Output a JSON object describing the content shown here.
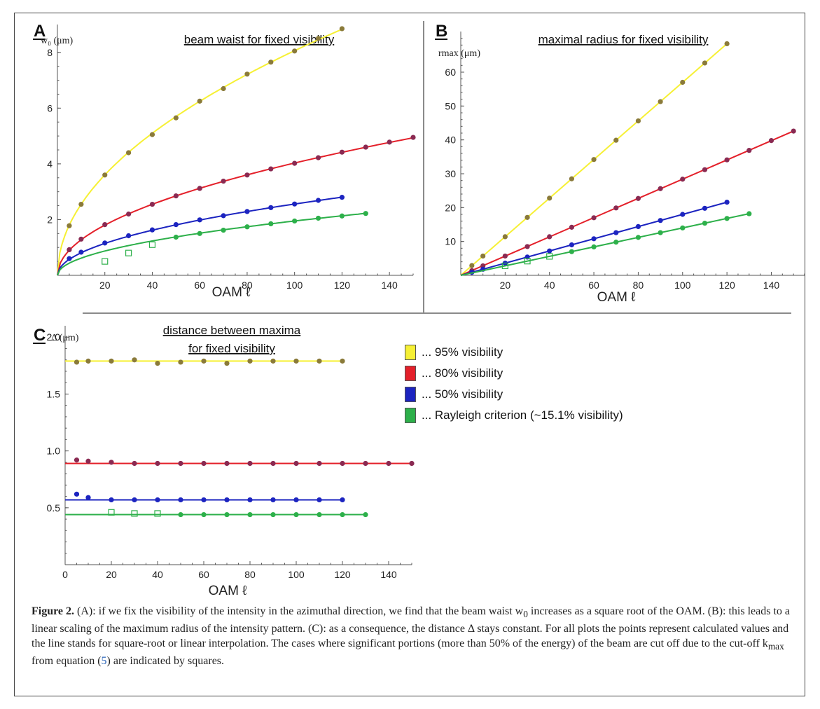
{
  "figure": {
    "caption_lead": "Figure 2.",
    "caption_part1": " (A): if we fix the visibility of the intensity in the azimuthal direction, we find that the beam waist w",
    "caption_sub0": "0",
    "caption_part2": " increases as a square root of the OAM. (B): this leads to a linear scaling of the maximum radius of the intensity pattern. (C): as a consequence, the distance Δ stays constant. For all plots the points represent calculated values and the line stands for square-root or linear interpolation. The cases where significant portions (more than 50% of the energy) of the beam are cut off due to the cut-off k",
    "caption_submax": "max",
    "caption_part3": " from equation (",
    "caption_ref": "5",
    "caption_part4": ") are indicated by squares."
  },
  "legend": [
    {
      "label": "... 95% visibility",
      "color": "#f6f034"
    },
    {
      "label": "... 80% visibility",
      "color": "#e4202a"
    },
    {
      "label": "... 50% visibility",
      "color": "#1c24c0"
    },
    {
      "label": "... Rayleigh criterion (~15.1% visibility)",
      "color": "#2db04a"
    }
  ],
  "chart_data": [
    {
      "panel": "A",
      "type": "line",
      "title": "beam waist for fixed visibility",
      "ylabel": "w₀ (μm)",
      "xlabel": "OAM ℓ",
      "xlim": [
        0,
        150
      ],
      "ylim": [
        0,
        9
      ],
      "xticks": [
        20,
        40,
        60,
        80,
        100,
        120,
        140
      ],
      "yticks": [
        2,
        4,
        6,
        8
      ],
      "fit": "sqrt",
      "series": [
        {
          "name": "95% visibility",
          "color": "#f6f034",
          "point_color": "#8a7a3a",
          "k": 0.806,
          "x": [
            5,
            10,
            20,
            30,
            40,
            50,
            60,
            70,
            80,
            90,
            100,
            110,
            120
          ],
          "y": [
            1.78,
            2.55,
            3.6,
            4.4,
            5.05,
            5.65,
            6.25,
            6.7,
            7.22,
            7.65,
            8.05,
            8.5,
            8.85
          ],
          "cut_x": [],
          "cut_y": []
        },
        {
          "name": "80% visibility",
          "color": "#e4202a",
          "point_color": "#8a2a52",
          "k": 0.403,
          "x": [
            5,
            10,
            20,
            30,
            40,
            50,
            60,
            70,
            80,
            90,
            100,
            110,
            120,
            130,
            140,
            150
          ],
          "y": [
            0.92,
            1.3,
            1.82,
            2.2,
            2.55,
            2.85,
            3.12,
            3.38,
            3.6,
            3.82,
            4.02,
            4.22,
            4.42,
            4.6,
            4.78,
            4.95
          ],
          "cut_x": [],
          "cut_y": []
        },
        {
          "name": "50% visibility",
          "color": "#1c24c0",
          "point_color": "#1c24c0",
          "k": 0.256,
          "x": [
            5,
            10,
            20,
            30,
            40,
            50,
            60,
            70,
            80,
            90,
            100,
            110,
            120
          ],
          "y": [
            0.6,
            0.83,
            1.16,
            1.42,
            1.63,
            1.82,
            1.99,
            2.14,
            2.29,
            2.43,
            2.56,
            2.69,
            2.8
          ],
          "cut_x": [],
          "cut_y": []
        },
        {
          "name": "Rayleigh criterion (~15.1% visibility)",
          "color": "#2db04a",
          "point_color": "#2db04a",
          "k": 0.195,
          "x": [
            50,
            60,
            70,
            80,
            90,
            100,
            110,
            120,
            130
          ],
          "y": [
            1.37,
            1.5,
            1.62,
            1.74,
            1.85,
            1.95,
            2.05,
            2.13,
            2.22
          ],
          "cut_x": [
            20,
            30,
            40
          ],
          "cut_y": [
            0.5,
            0.8,
            1.1
          ]
        }
      ]
    },
    {
      "panel": "B",
      "type": "line",
      "title": "maximal radius for fixed visibility",
      "ylabel": "r_max (μm)",
      "xlabel": "OAM ℓ",
      "xlim": [
        0,
        155
      ],
      "ylim": [
        0,
        72
      ],
      "xticks": [
        20,
        40,
        60,
        80,
        100,
        120,
        140
      ],
      "yticks": [
        10,
        20,
        30,
        40,
        50,
        60
      ],
      "fit": "linear",
      "series": [
        {
          "name": "95% visibility",
          "color": "#f6f034",
          "point_color": "#8a7a3a",
          "k": 0.57,
          "x": [
            5,
            10,
            20,
            30,
            40,
            50,
            60,
            70,
            80,
            90,
            100,
            110,
            120
          ],
          "y": [
            2.9,
            5.7,
            11.4,
            17.1,
            22.8,
            28.5,
            34.2,
            39.9,
            45.6,
            51.3,
            57,
            62.7,
            68.4
          ],
          "cut_x": [],
          "cut_y": []
        },
        {
          "name": "80% visibility",
          "color": "#e4202a",
          "point_color": "#8a2a52",
          "k": 0.284,
          "x": [
            5,
            10,
            20,
            30,
            40,
            50,
            60,
            70,
            80,
            90,
            100,
            110,
            120,
            130,
            140,
            150
          ],
          "y": [
            1.4,
            2.8,
            5.7,
            8.5,
            11.4,
            14.2,
            17,
            19.9,
            22.7,
            25.6,
            28.4,
            31.2,
            34.1,
            36.9,
            39.8,
            42.6
          ],
          "cut_x": [],
          "cut_y": []
        },
        {
          "name": "50% visibility",
          "color": "#1c24c0",
          "point_color": "#1c24c0",
          "k": 0.18,
          "x": [
            5,
            10,
            20,
            30,
            40,
            50,
            60,
            70,
            80,
            90,
            100,
            110,
            120
          ],
          "y": [
            0.9,
            1.8,
            3.6,
            5.4,
            7.2,
            9,
            10.8,
            12.6,
            14.4,
            16.2,
            18,
            19.8,
            21.6
          ],
          "cut_x": [],
          "cut_y": []
        },
        {
          "name": "Rayleigh criterion (~15.1% visibility)",
          "color": "#2db04a",
          "point_color": "#2db04a",
          "k": 0.14,
          "x": [
            50,
            60,
            70,
            80,
            90,
            100,
            110,
            120,
            130
          ],
          "y": [
            7,
            8.4,
            9.8,
            11.2,
            12.6,
            14,
            15.4,
            16.8,
            18.2
          ],
          "cut_x": [
            20,
            30,
            40
          ],
          "cut_y": [
            2.8,
            4.2,
            5.6
          ]
        }
      ]
    },
    {
      "panel": "C",
      "type": "line",
      "title": "distance between maxima",
      "title2": "for fixed visibility",
      "ylabel": "Δ (μm)",
      "xlabel": "OAM ℓ",
      "xlim": [
        0,
        150
      ],
      "ylim": [
        0,
        2.1
      ],
      "xticks": [
        0,
        20,
        40,
        60,
        80,
        100,
        120,
        140
      ],
      "yticks": [
        "0.5",
        "1.0",
        "1.5",
        "2.0"
      ],
      "fit": "constant",
      "series": [
        {
          "name": "95% visibility",
          "color": "#f6f034",
          "point_color": "#8a7a3a",
          "level": 1.79,
          "line_end": 120,
          "x": [
            5,
            10,
            20,
            30,
            40,
            50,
            60,
            70,
            80,
            90,
            100,
            110,
            120
          ],
          "y": [
            1.78,
            1.79,
            1.79,
            1.8,
            1.77,
            1.78,
            1.79,
            1.77,
            1.79,
            1.79,
            1.79,
            1.79,
            1.79
          ],
          "cut_x": [],
          "cut_y": []
        },
        {
          "name": "80% visibility",
          "color": "#e4202a",
          "point_color": "#8a2a52",
          "level": 0.89,
          "line_end": 150,
          "x": [
            5,
            10,
            20,
            30,
            40,
            50,
            60,
            70,
            80,
            90,
            100,
            110,
            120,
            130,
            140,
            150
          ],
          "y": [
            0.92,
            0.91,
            0.9,
            0.89,
            0.89,
            0.89,
            0.89,
            0.89,
            0.89,
            0.89,
            0.89,
            0.89,
            0.89,
            0.89,
            0.89,
            0.89
          ],
          "cut_x": [],
          "cut_y": []
        },
        {
          "name": "50% visibility",
          "color": "#1c24c0",
          "point_color": "#1c24c0",
          "level": 0.57,
          "line_end": 120,
          "x": [
            5,
            10,
            20,
            30,
            40,
            50,
            60,
            70,
            80,
            90,
            100,
            110,
            120
          ],
          "y": [
            0.62,
            0.59,
            0.57,
            0.57,
            0.57,
            0.57,
            0.57,
            0.57,
            0.57,
            0.57,
            0.57,
            0.57,
            0.57
          ],
          "cut_x": [],
          "cut_y": []
        },
        {
          "name": "Rayleigh criterion (~15.1% visibility)",
          "color": "#2db04a",
          "point_color": "#2db04a",
          "level": 0.44,
          "line_end": 130,
          "x": [
            50,
            60,
            70,
            80,
            90,
            100,
            110,
            120,
            130
          ],
          "y": [
            0.44,
            0.44,
            0.44,
            0.44,
            0.44,
            0.44,
            0.44,
            0.44,
            0.44
          ],
          "cut_x": [
            20,
            30,
            40
          ],
          "cut_y": [
            0.46,
            0.45,
            0.45
          ]
        }
      ]
    }
  ]
}
